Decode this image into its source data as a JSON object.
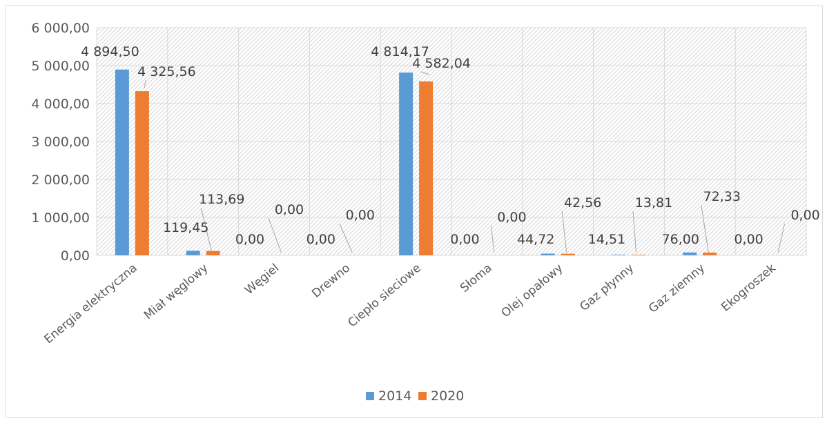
{
  "chart_data": {
    "type": "bar",
    "title": "",
    "xlabel": "",
    "ylabel": "",
    "categories": [
      "Energia elektryczna",
      "Miał węglowy",
      "Węgiel",
      "Drewno",
      "Ciepło sieciowe",
      "Słoma",
      "Olej opałowy",
      "Gaz płynny",
      "Gaz ziemny",
      "Ekogroszek"
    ],
    "series": [
      {
        "name": "2014",
        "color": "#5B9BD5",
        "values": [
          4894.5,
          119.45,
          0.0,
          0.0,
          4814.17,
          0.0,
          44.72,
          14.51,
          76.0,
          0.0
        ],
        "labels": [
          "4 894,50",
          "119,45",
          "0,00",
          "0,00",
          "4 814,17",
          "0,00",
          "44,72",
          "14,51",
          "76,00",
          "0,00"
        ]
      },
      {
        "name": "2020",
        "color": "#ED7D31",
        "values": [
          4325.56,
          113.69,
          0.0,
          0.0,
          4582.04,
          0.0,
          42.56,
          13.81,
          72.33,
          0.0
        ],
        "labels": [
          "4 325,56",
          "113,69",
          "0,00",
          "0,00",
          "4 582,04",
          "0,00",
          "42,56",
          "13,81",
          "72,33",
          "0,00"
        ]
      }
    ],
    "ylim": [
      0,
      6000
    ],
    "yticks": [
      0,
      1000,
      2000,
      3000,
      4000,
      5000,
      6000
    ],
    "ytick_labels": [
      "0,00",
      "1 000,00",
      "2 000,00",
      "3 000,00",
      "4 000,00",
      "5 000,00",
      "6 000,00"
    ],
    "grid": true,
    "legend_position": "bottom"
  }
}
